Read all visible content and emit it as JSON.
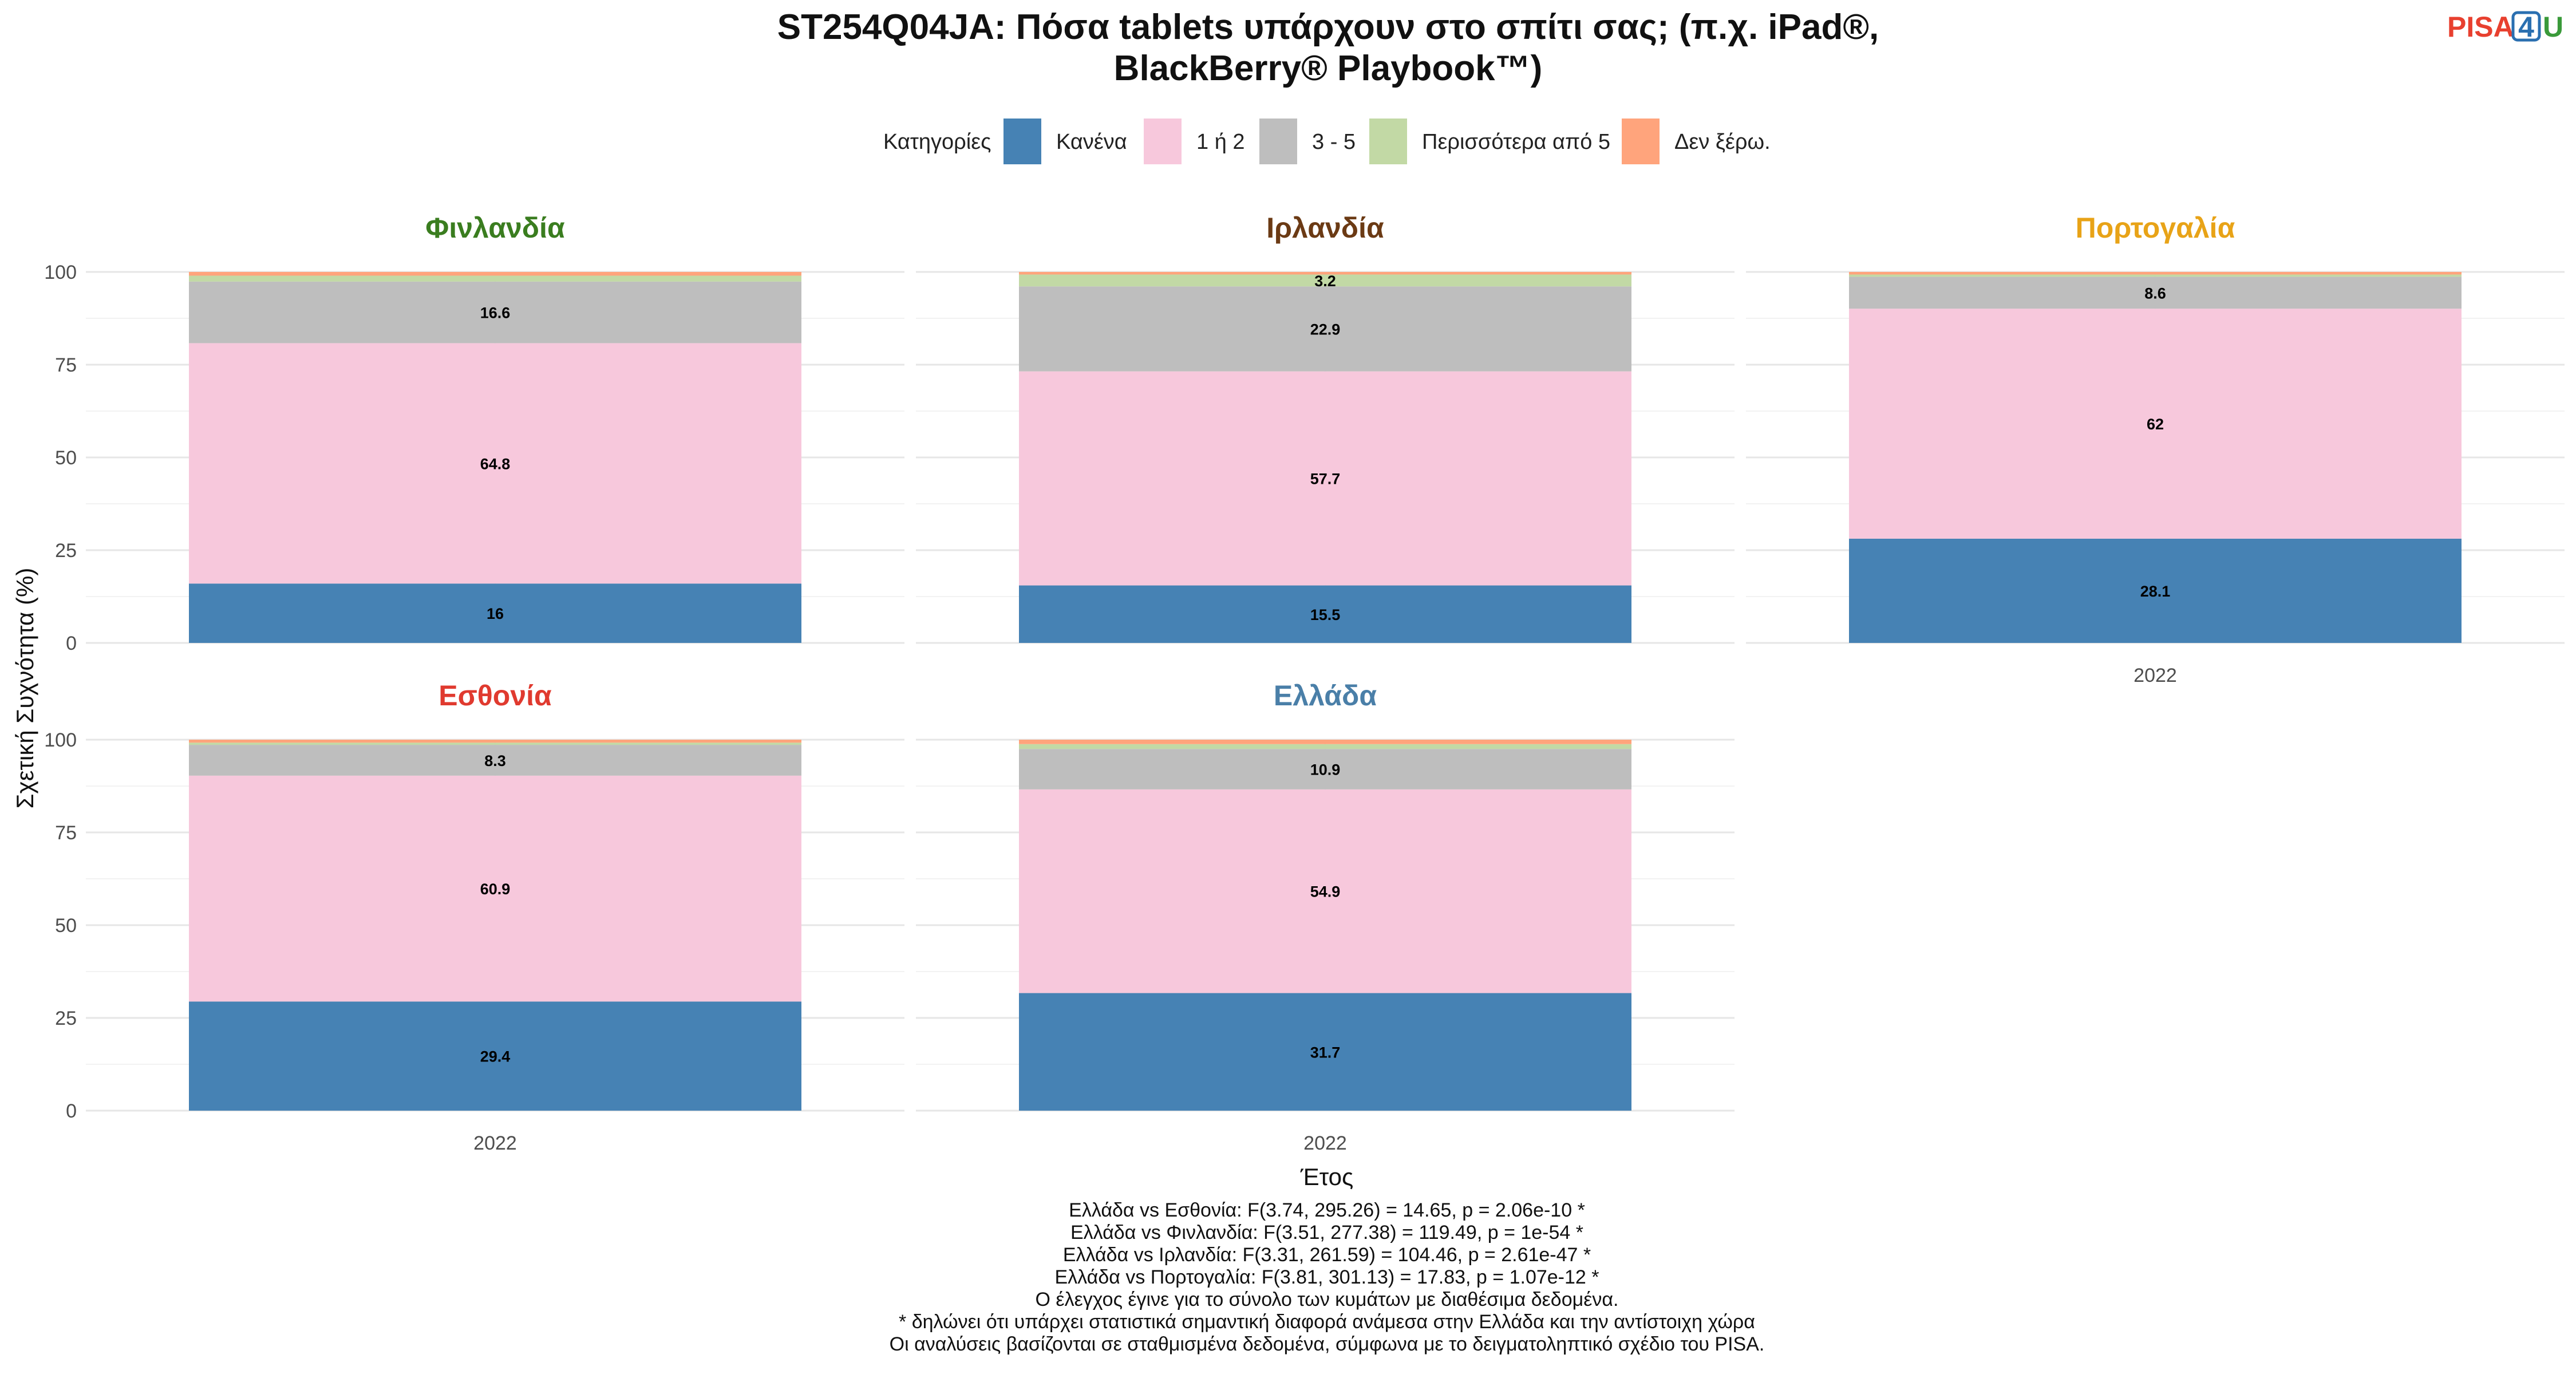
{
  "title_line1": "ST254Q04JA: Πόσα tablets υπάρχουν στο σπίτι σας; (π.χ. iPad®,",
  "title_line2": "BlackBerry® Playbook™)",
  "logo": {
    "pisa": "PISA",
    "four": "4",
    "u": "U",
    "pisa_color": "#e8402f",
    "four_color": "#2a6fb0",
    "u_color": "#3a9a3a"
  },
  "legend": {
    "title": "Κατηγορίες"
  },
  "y_axis_title": "Σχετική Συχνότητα (%)",
  "x_axis_title": "Έτος",
  "chart_data": {
    "type": "bar",
    "stacked": true,
    "x_categories": [
      "2022"
    ],
    "ylim": [
      0,
      100
    ],
    "y_ticks": [
      0,
      25,
      50,
      75,
      100
    ],
    "grid": true,
    "legend_position": "top",
    "categories": [
      {
        "name": "Κανένα",
        "color": "#4682b4"
      },
      {
        "name": "1 ή 2",
        "color": "#f7c8dc"
      },
      {
        "name": "3 - 5",
        "color": "#bebebe"
      },
      {
        "name": "Περισσότερα από 5",
        "color": "#c2d9a5"
      },
      {
        "name": "Δεν ξέρω.",
        "color": "#ffa47c"
      }
    ],
    "panels": [
      {
        "country": "Φινλανδία",
        "color": "#3a7d1f",
        "values": [
          16,
          64.8,
          16.6,
          1.6,
          1.0
        ],
        "labels": [
          "16",
          "64.8",
          "16.6",
          "",
          ""
        ]
      },
      {
        "country": "Ιρλανδία",
        "color": "#6b3a14",
        "values": [
          15.5,
          57.7,
          22.9,
          3.2,
          0.7
        ],
        "labels": [
          "15.5",
          "57.7",
          "22.9",
          "3.2",
          ""
        ]
      },
      {
        "country": "Πορτογαλία",
        "color": "#e8a317",
        "values": [
          28.1,
          62,
          8.6,
          0.6,
          0.7
        ],
        "labels": [
          "28.1",
          "62",
          "8.6",
          "",
          ""
        ]
      },
      {
        "country": "Εσθονία",
        "color": "#e03a2f",
        "values": [
          29.4,
          60.9,
          8.3,
          0.6,
          0.8
        ],
        "labels": [
          "29.4",
          "60.9",
          "8.3",
          "",
          ""
        ]
      },
      {
        "country": "Ελλάδα",
        "color": "#4a7fa8",
        "values": [
          31.7,
          54.9,
          10.9,
          1.3,
          1.2
        ],
        "labels": [
          "31.7",
          "54.9",
          "10.9",
          "",
          ""
        ]
      }
    ]
  },
  "notes": [
    "Ελλάδα vs Εσθονία: F(3.74, 295.26) = 14.65, p = 2.06e-10 *",
    "Ελλάδα vs Φινλανδία: F(3.51, 277.38) = 119.49, p = 1e-54 *",
    "Ελλάδα vs Ιρλανδία: F(3.31, 261.59) = 104.46, p = 2.61e-47 *",
    "Ελλάδα vs Πορτογαλία: F(3.81, 301.13) = 17.83, p = 1.07e-12 *",
    "Ο έλεγχος έγινε για το σύνολο των κυμάτων με διαθέσιμα δεδομένα.",
    "* δηλώνει ότι υπάρχει στατιστικά σημαντική διαφορά ανάμεσα στην Ελλάδα και την αντίστοιχη χώρα",
    "Οι αναλύσεις βασίζονται σε σταθμισμένα δεδομένα, σύμφωνα με το δειγματοληπτικό σχέδιο του PISA."
  ]
}
